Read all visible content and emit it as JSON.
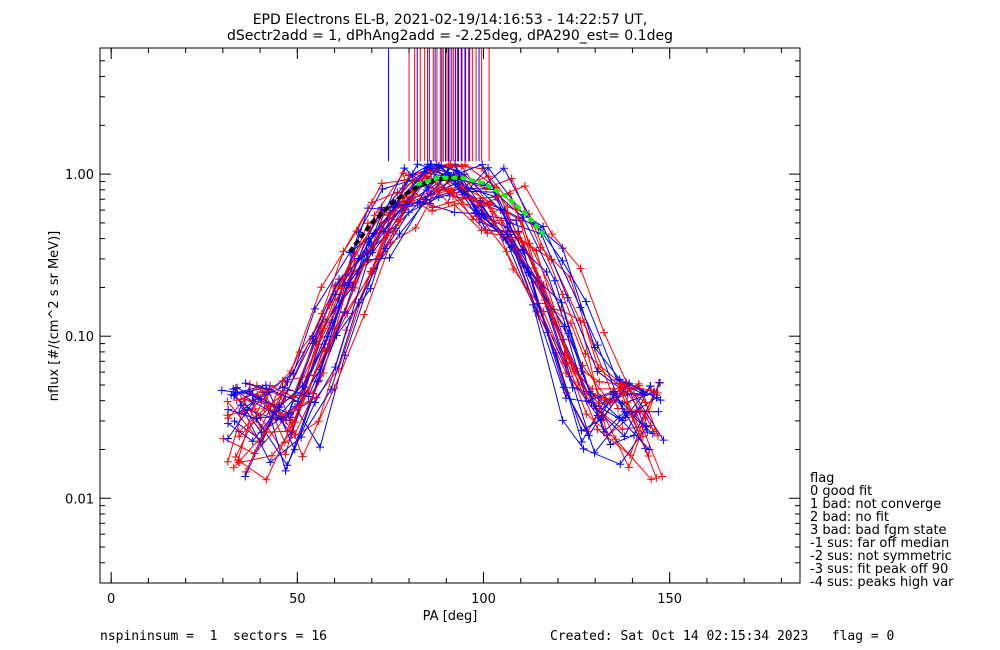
{
  "chart_data": {
    "type": "line",
    "title_line1": "EPD Electrons EL-B, 2021-02-19/14:16:53 - 14:22:57 UT,",
    "title_line2": "dSectr2add = 1, dPhAng2add = -2.25deg, dPA290_est=   0.1deg",
    "xlabel": "PA [deg]",
    "ylabel": "nflux [#/(cm^2 s sr MeV)]",
    "xlim": [
      -3,
      185
    ],
    "ylim": [
      0.003,
      6
    ],
    "y_scale": "log",
    "x_ticks": [
      {
        "value": 0,
        "label": "0"
      },
      {
        "value": 50,
        "label": "50"
      },
      {
        "value": 100,
        "label": "100"
      },
      {
        "value": 150,
        "label": "150"
      }
    ],
    "x_minor_step": 10,
    "y_ticks": [
      {
        "value": 0.01,
        "label": "0.01"
      },
      {
        "value": 0.1,
        "label": "0.10"
      },
      {
        "value": 1,
        "label": "1.00"
      }
    ],
    "series": [
      {
        "color": "#ff0000"
      },
      {
        "color": "#0000ff"
      }
    ],
    "fit_curves": [
      {
        "color": "#000000",
        "x": [
          64,
          70,
          76,
          82,
          88,
          94
        ],
        "y": [
          0.33,
          0.5,
          0.68,
          0.83,
          0.93,
          0.95
        ]
      },
      {
        "color": "#00ff00",
        "x": [
          82,
          88,
          94,
          100,
          106,
          112,
          117
        ],
        "y": [
          0.86,
          0.95,
          0.95,
          0.88,
          0.73,
          0.55,
          0.4
        ]
      }
    ],
    "peak_lines": {
      "y_range": [
        1.2,
        6
      ],
      "red_x": [
        80,
        81.5,
        83,
        84.2,
        85.5,
        86.5,
        87.5,
        88.4,
        89.2,
        90.2,
        91,
        92,
        93,
        94,
        95,
        96,
        97,
        98,
        99.5,
        101.5
      ],
      "blue_x": [
        74.5,
        82.2,
        85,
        87,
        88.8,
        89.8,
        90.6,
        91.5,
        92.5,
        93.3,
        94.2,
        95.2,
        96.3,
        98.8
      ]
    }
  },
  "legend": {
    "title": "flag",
    "items": [
      " 0 good fit",
      " 1 bad: not converge",
      " 2 bad: no fit",
      " 3 bad: bad fgm state",
      "-1 sus: far off median",
      "-2 sus: not symmetric",
      "-3 sus: fit peak off 90",
      "-4 sus: peaks high var"
    ]
  },
  "footer": {
    "left": "nspininsum =  1  sectors = 16",
    "right": "Created: Sat Oct 14 02:15:34 2023   flag = 0"
  }
}
